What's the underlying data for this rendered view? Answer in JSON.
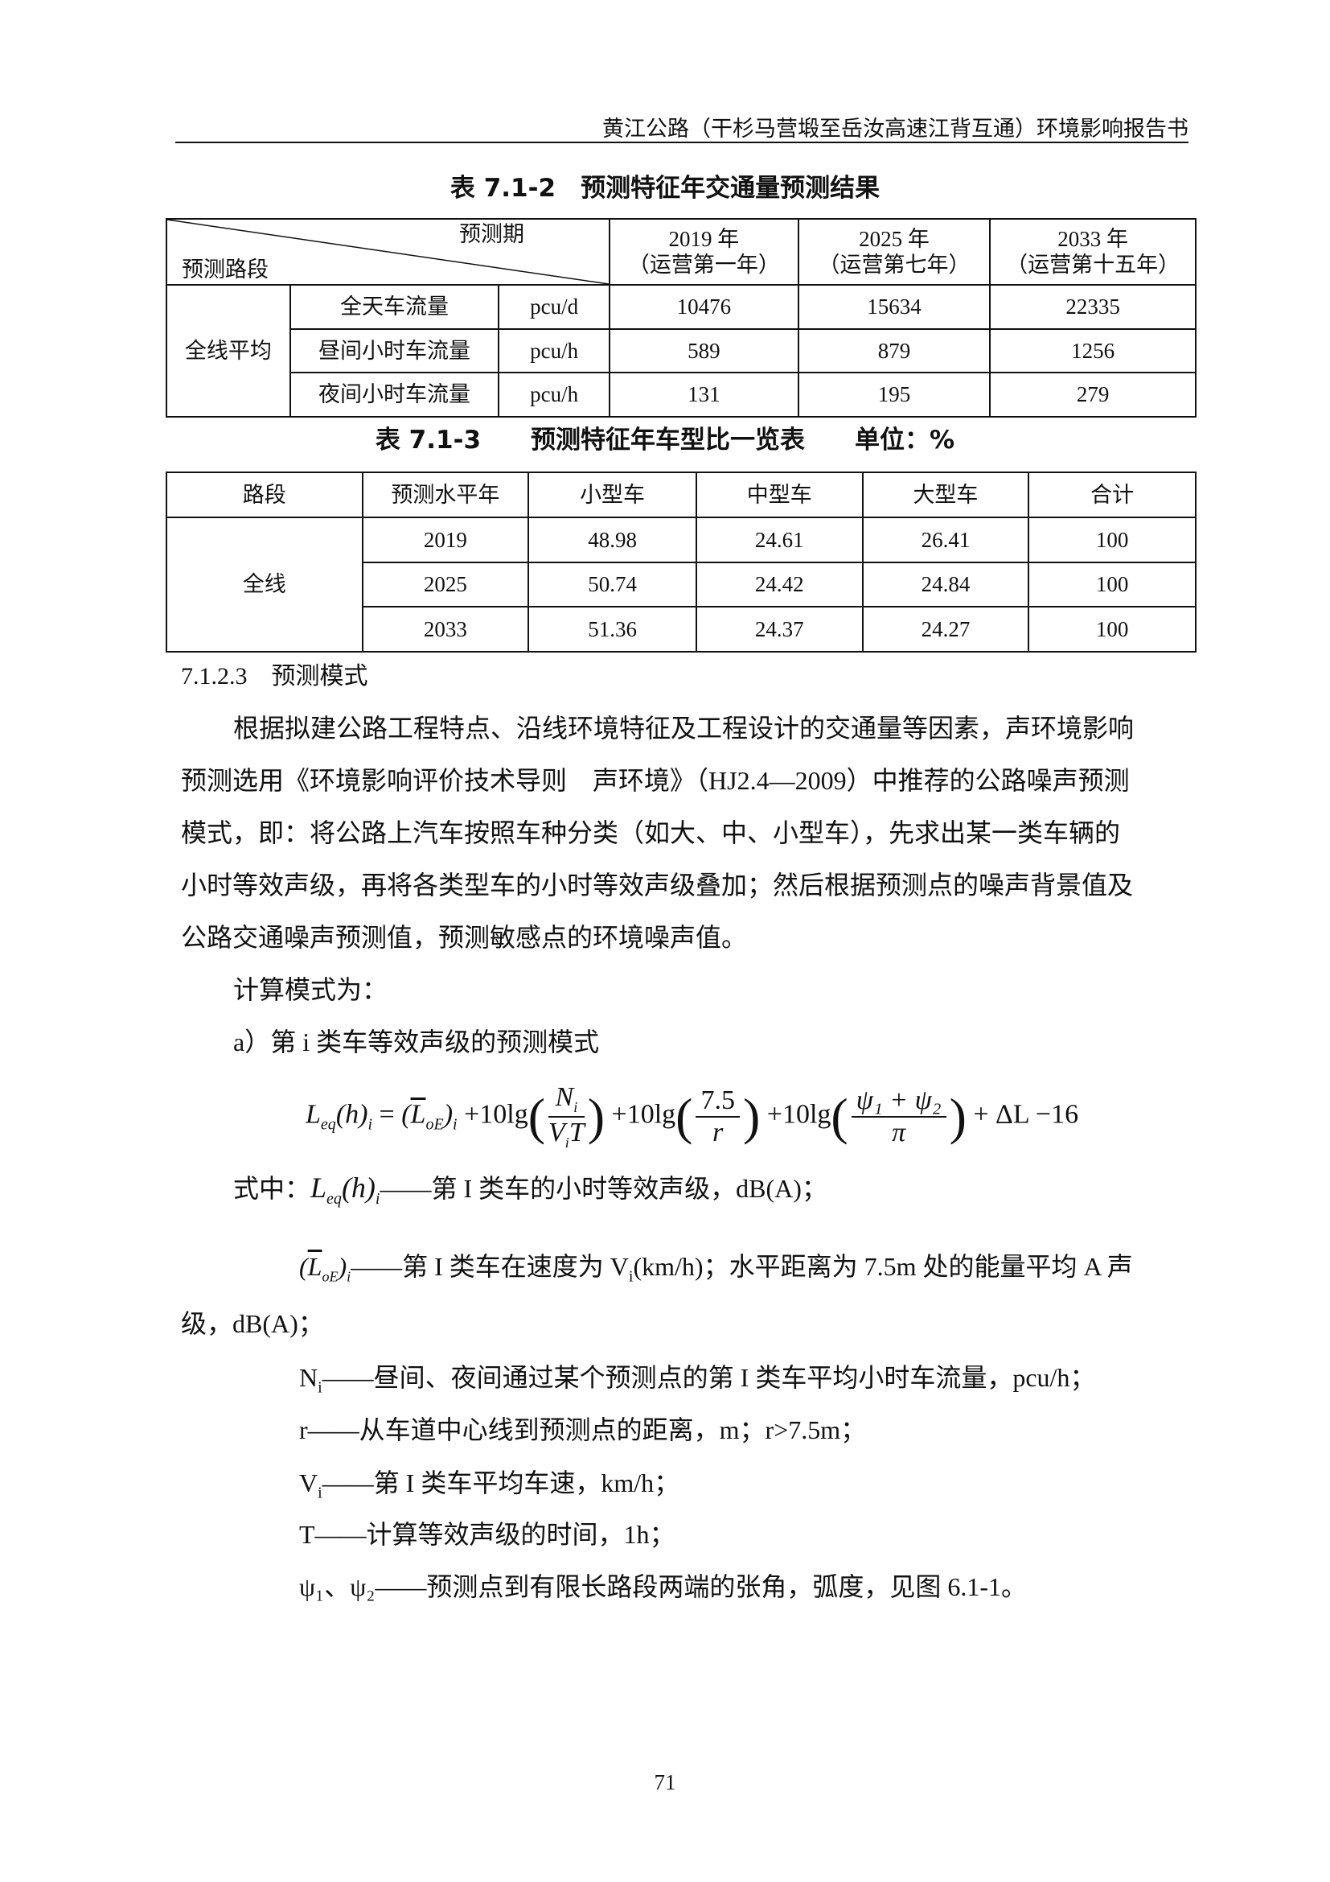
{
  "header": "黄江公路（干杉马营塅至岳汝高速江背互通）环境影响报告书",
  "table1": {
    "caption": "表 7.1-2　预测特征年交通量预测结果",
    "corner_top": "预测期",
    "corner_bottom": "预测路段",
    "years": [
      {
        "year": "2019 年",
        "note": "（运营第一年）"
      },
      {
        "year": "2025 年",
        "note": "（运营第七年）"
      },
      {
        "year": "2033 年",
        "note": "（运营第十五年）"
      }
    ],
    "group": "全线平均",
    "rows": [
      {
        "label": "全天车流量",
        "unit": "pcu/d",
        "values": [
          "10476",
          "15634",
          "22335"
        ]
      },
      {
        "label": "昼间小时车流量",
        "unit": "pcu/h",
        "values": [
          "589",
          "879",
          "1256"
        ]
      },
      {
        "label": "夜间小时车流量",
        "unit": "pcu/h",
        "values": [
          "131",
          "195",
          "279"
        ]
      }
    ]
  },
  "table2": {
    "caption": "表 7.1-3　　预测特征年车型比一览表　　单位：%",
    "headers": [
      "路段",
      "预测水平年",
      "小型车",
      "中型车",
      "大型车",
      "合计"
    ],
    "group": "全线",
    "rows": [
      [
        "2019",
        "48.98",
        "24.61",
        "26.41",
        "100"
      ],
      [
        "2025",
        "50.74",
        "24.42",
        "24.84",
        "100"
      ],
      [
        "2033",
        "51.36",
        "24.37",
        "24.27",
        "100"
      ]
    ]
  },
  "section": "7.1.2.3　预测模式",
  "paragraph": [
    "根据拟建公路工程特点、沿线环境特征及工程设计的交通量等因素，声环境影响",
    "预测选用《环境影响评价技术导则　声环境》（HJ2.4—2009）中推荐的公路噪声预测",
    "模式，即：将公路上汽车按照车种分类（如大、中、小型车），先求出某一类车辆的",
    "小时等效声级，再将各类型车的小时等效声级叠加；然后根据预测点的噪声背景值及",
    "公路交通噪声预测值，预测敏感点的环境噪声值。"
  ],
  "calc_intro": "计算模式为：",
  "item_a": "a）第 i 类车等效声级的预测模式",
  "formula": {
    "lhs": "L",
    "lhs_sub": "eq",
    "h": "(h)",
    "i": "i",
    "eq": "=",
    "loe": "L",
    "loe_sub": "oE",
    "t1": "+10lg",
    "n": "N",
    "v": "V",
    "T": "T",
    "t2": "+10lg",
    "num2": "7.5",
    "den2": "r",
    "t3": "+10lg",
    "num3": "ψ₁ + ψ₂",
    "den3": "π",
    "tail": "+ ΔL −16"
  },
  "defs": {
    "prefix": "式中：",
    "leq": "——第 I 类车的小时等效声级，dB(A)；",
    "loe": "——第 I 类车在速度为 V",
    "loe_rest": "(km/h)；水平距离为 7.5m 处的能量平均 A 声",
    "loe_cont": "级，dB(A)；",
    "ni": "——昼间、夜间通过某个预测点的第 I 类车平均小时车流量，pcu/h；",
    "r": "r——从车道中心线到预测点的距离，m；r>7.5m；",
    "vi": "——第 I 类车平均车速，km/h；",
    "t": "T——计算等效声级的时间，1h；",
    "psi": "ψ₁、ψ₂——预测点到有限长路段两端的张角，弧度，见图 6.1-1。"
  },
  "page_number": "71"
}
